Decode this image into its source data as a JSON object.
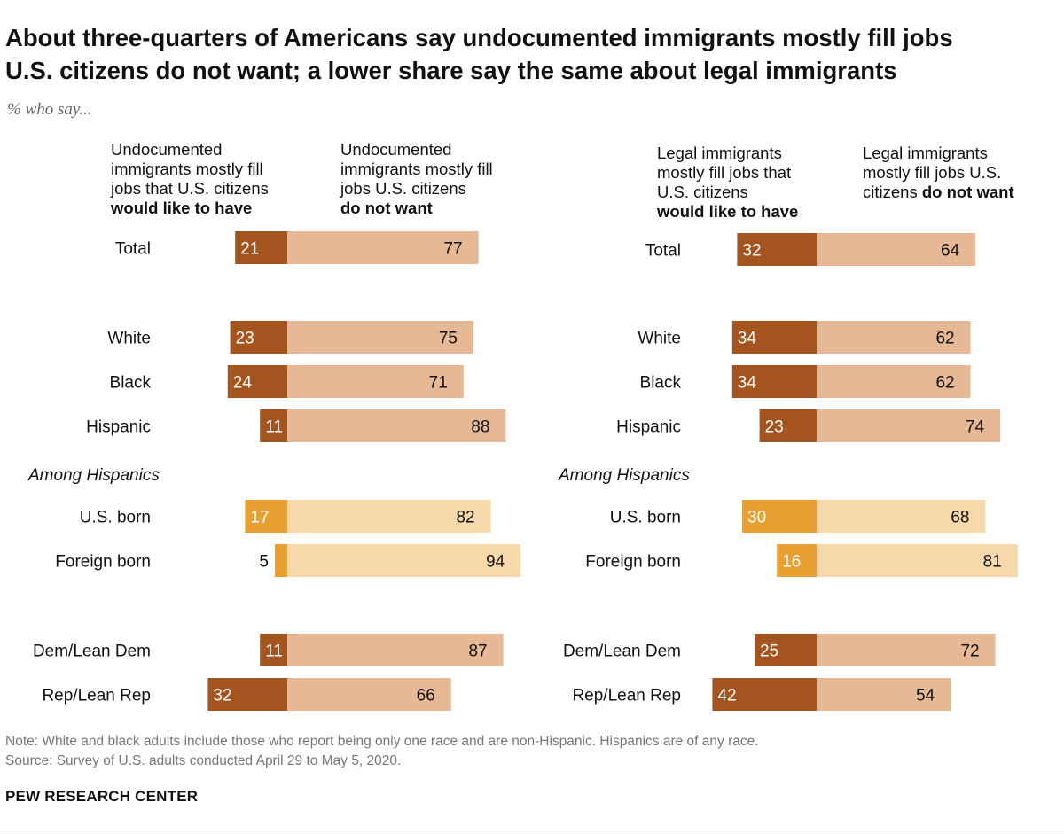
{
  "header": {
    "title_line1": "About three-quarters of Americans say undocumented immigrants mostly fill jobs",
    "title_line2": "U.S. citizens do not want; a lower share say the same about legal immigrants",
    "subtitle": "% who say..."
  },
  "column_headers": {
    "left_like_plain": [
      "Undocumented",
      "immigrants mostly fill",
      "jobs that U.S. citizens"
    ],
    "left_like_bold": "would like to have",
    "left_notwant_plain": [
      "Undocumented",
      "immigrants mostly fill",
      "jobs U.S. citizens"
    ],
    "left_notwant_bold": "do not want",
    "right_like_plain": [
      "Legal immigrants",
      "mostly fill jobs that",
      "U.S. citizens"
    ],
    "right_like_bold": "would like to have",
    "right_notwant_plain": [
      "Legal immigrants",
      "mostly fill jobs U.S."
    ],
    "right_notwant_prefix": "citizens",
    "right_notwant_bold": "do not want"
  },
  "colors": {
    "like_dark": "#a4541f",
    "notwant_light": "#e6b896",
    "like_hispanic": "#e9a032",
    "notwant_hispanic": "#f6d8aa"
  },
  "chart_data": [
    {
      "type": "bar",
      "orientation": "horizontal-diverging",
      "categories": [
        "Total",
        "White",
        "Black",
        "Hispanic",
        "U.S. born",
        "Foreign born",
        "Dem/Lean Dem",
        "Rep/Lean Rep"
      ],
      "group_label": "Among Hispanics",
      "series": [
        {
          "name": "Undocumented immigrants mostly fill jobs that U.S. citizens would like to have",
          "values": [
            21,
            23,
            24,
            11,
            17,
            5,
            11,
            32
          ]
        },
        {
          "name": "Undocumented immigrants mostly fill jobs U.S. citizens do not want",
          "values": [
            77,
            75,
            71,
            88,
            82,
            94,
            87,
            66
          ]
        }
      ],
      "value_labels_like": [
        "21",
        "23",
        "24",
        "11",
        "17",
        "5",
        "11",
        "32"
      ],
      "value_labels_notwant": [
        "77",
        "75",
        "71",
        "88",
        "82",
        "94",
        "87",
        "66"
      ]
    },
    {
      "type": "bar",
      "orientation": "horizontal-diverging",
      "categories": [
        "Total",
        "White",
        "Black",
        "Hispanic",
        "U.S. born",
        "Foreign born",
        "Dem/Lean Dem",
        "Rep/Lean Rep"
      ],
      "group_label": "Among Hispanics",
      "series": [
        {
          "name": "Legal immigrants mostly fill jobs that U.S. citizens would like to have",
          "values": [
            32,
            34,
            34,
            23,
            30,
            16,
            25,
            42
          ]
        },
        {
          "name": "Legal immigrants mostly fill jobs U.S. citizens do not want",
          "values": [
            64,
            62,
            62,
            74,
            68,
            81,
            72,
            54
          ]
        }
      ],
      "value_labels_like": [
        "32",
        "34",
        "34",
        "23",
        "30",
        "16",
        "25",
        "42"
      ],
      "value_labels_notwant": [
        "64",
        "62",
        "62",
        "74",
        "68",
        "81",
        "72",
        "54"
      ]
    }
  ],
  "footer": {
    "note": "Note: White and black adults include those who report being only one race and are non-Hispanic. Hispanics are of any race.",
    "source": "Source: Survey of U.S. adults conducted April 29 to May 5, 2020.",
    "brand": "PEW RESEARCH CENTER"
  }
}
